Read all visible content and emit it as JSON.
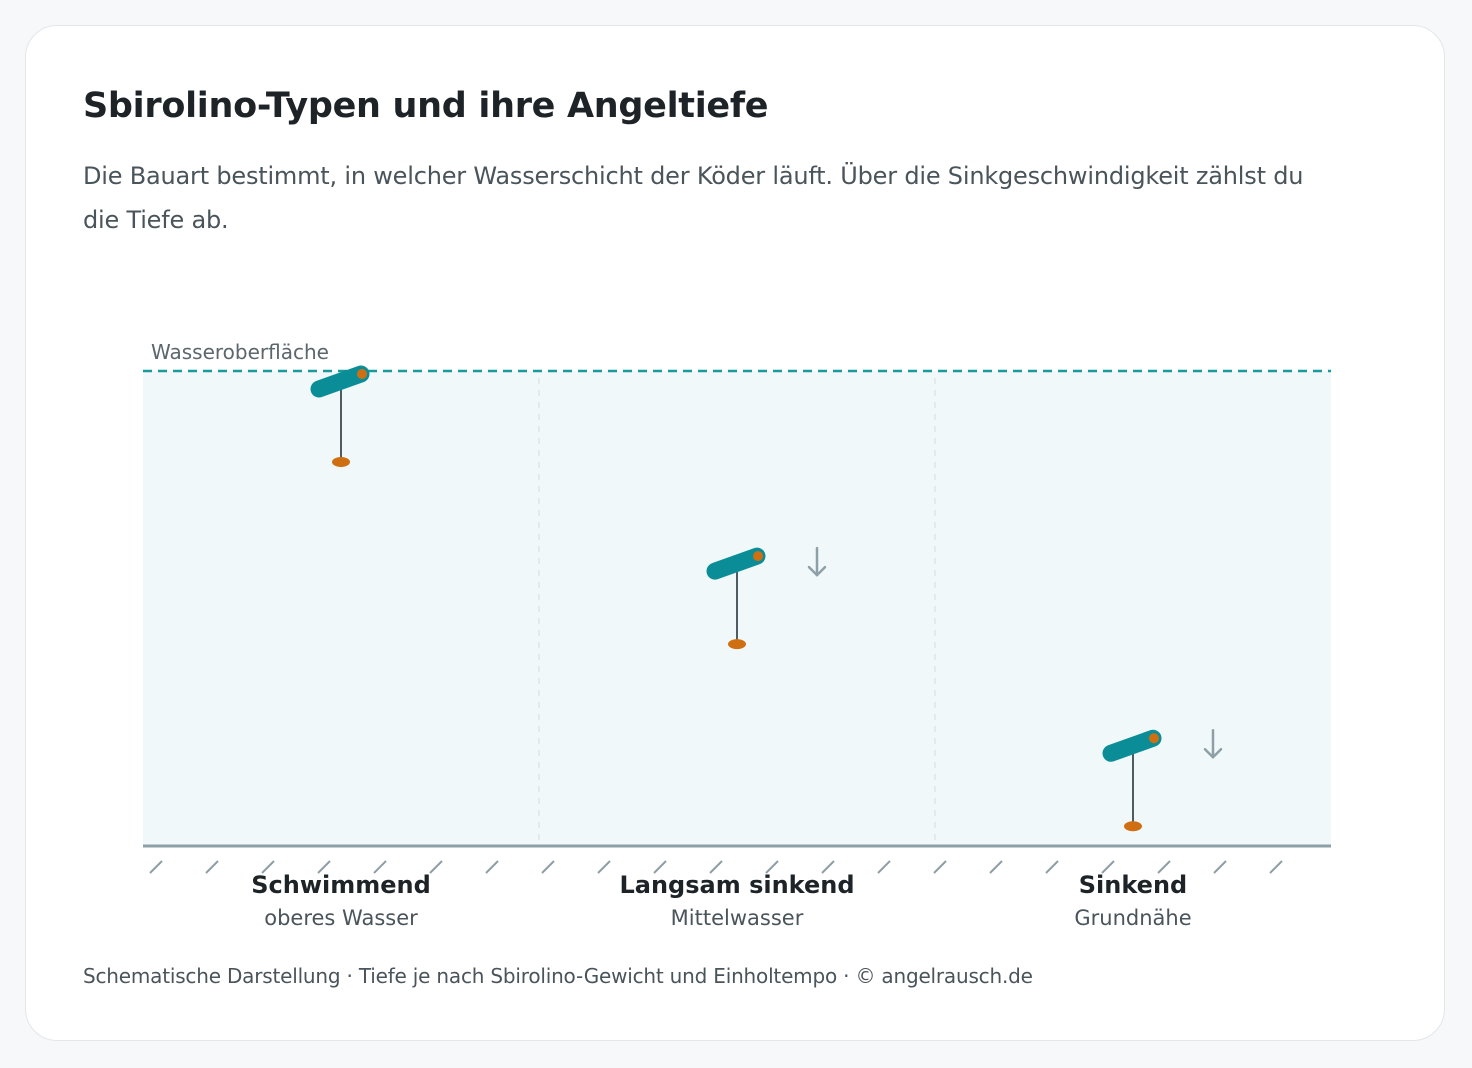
{
  "header": {
    "title": "Sbirolino-Typen und ihre Angeltiefe",
    "subtitle": "Die Bauart bestimmt, in welcher Wasserschicht der Köder läuft. Über die Sinkgeschwindigkeit zählst du die Tiefe ab."
  },
  "diagram": {
    "surface_label": "Wasseroberfläche",
    "columns": [
      {
        "title": "Schwimmend",
        "subtitle": "oberes Wasser",
        "depth_fraction": 0.0,
        "sinks": false
      },
      {
        "title": "Langsam sinkend",
        "subtitle": "Mittelwasser",
        "depth_fraction": 0.39,
        "sinks": true
      },
      {
        "title": "Sinkend",
        "subtitle": "Grundnähe",
        "depth_fraction": 0.78,
        "sinks": true
      }
    ],
    "icons": {
      "float": "sbirolino-float-icon",
      "lure": "lure-icon",
      "sink": "arrow-down-icon"
    },
    "colors": {
      "water": "#f0f8f9",
      "surface": "#1a9a9c",
      "float": "#0b8d98",
      "accent": "#cf6f12",
      "ground": "#8ea0a7",
      "arrow": "#8ea0a7"
    }
  },
  "footer": {
    "caption": "Schematische Darstellung · Tiefe je nach Sbirolino-Gewicht und Einholtempo · © angelrausch.de"
  }
}
